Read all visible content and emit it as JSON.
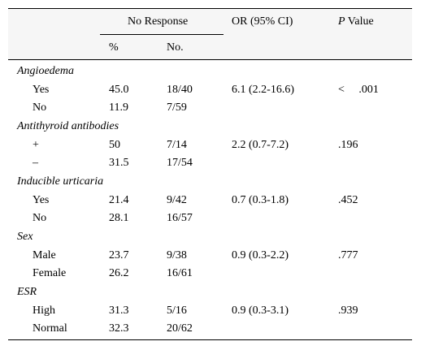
{
  "header": {
    "no_response": "No Response",
    "or_ci": "OR (95% CI)",
    "p_italic": "P",
    "p_rest": " Value",
    "pct": "%",
    "no": "No."
  },
  "groups": [
    {
      "label": "Angioedema",
      "rows": [
        {
          "name": "Yes",
          "pct": "45.0",
          "no": "18/40",
          "or": "6.1 (2.2-16.6)",
          "p": "<     .001"
        },
        {
          "name": "No",
          "pct": "11.9",
          "no": "7/59",
          "or": "",
          "p": ""
        }
      ]
    },
    {
      "label": "Antithyroid antibodies",
      "rows": [
        {
          "name": "+",
          "pct": "50",
          "no": "7/14",
          "or": "2.2 (0.7-7.2)",
          "p": ".196"
        },
        {
          "name": "–",
          "pct": "31.5",
          "no": "17/54",
          "or": "",
          "p": ""
        }
      ]
    },
    {
      "label": "Inducible urticaria",
      "rows": [
        {
          "name": "Yes",
          "pct": "21.4",
          "no": "9/42",
          "or": "0.7 (0.3-1.8)",
          "p": ".452"
        },
        {
          "name": "No",
          "pct": "28.1",
          "no": "16/57",
          "or": "",
          "p": ""
        }
      ]
    },
    {
      "label": "Sex",
      "rows": [
        {
          "name": "Male",
          "pct": "23.7",
          "no": "9/38",
          "or": "0.9 (0.3-2.2)",
          "p": ".777"
        },
        {
          "name": "Female",
          "pct": "26.2",
          "no": "16/61",
          "or": "",
          "p": ""
        }
      ]
    },
    {
      "label": "ESR",
      "rows": [
        {
          "name": "High",
          "pct": "31.3",
          "no": "5/16",
          "or": "0.9 (0.3-3.1)",
          "p": ".939"
        },
        {
          "name": "Normal",
          "pct": "32.3",
          "no": "20/62",
          "or": "",
          "p": ""
        }
      ]
    }
  ]
}
